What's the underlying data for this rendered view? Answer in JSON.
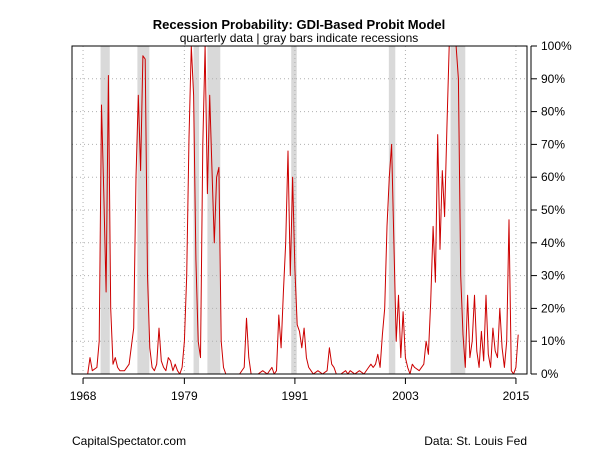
{
  "chart_data": {
    "type": "line",
    "title": "Recession Probability: GDI-Based Probit Model",
    "subtitle": "quarterly data | gray bars indicate recessions",
    "xlabel": "",
    "ylabel": "",
    "x_ticks": [
      "1968",
      "1979",
      "1991",
      "2003",
      "2015"
    ],
    "x_tick_values": [
      1968,
      1979,
      1991,
      2003,
      2015
    ],
    "y_ticks": [
      "0%",
      "10%",
      "20%",
      "30%",
      "40%",
      "50%",
      "60%",
      "70%",
      "80%",
      "90%",
      "100%"
    ],
    "y_tick_values": [
      0,
      10,
      20,
      30,
      40,
      50,
      60,
      70,
      80,
      90,
      100
    ],
    "xlim": [
      1966.8,
      2016.2
    ],
    "ylim": [
      0,
      100
    ],
    "grid": true,
    "line_color": "#cc0000",
    "recession_bar_color": "#d9d9d9",
    "recessions": [
      [
        1969.9,
        1970.9
      ],
      [
        1973.9,
        1975.2
      ],
      [
        1980.0,
        1980.6
      ],
      [
        1981.5,
        1982.9
      ],
      [
        1990.6,
        1991.2
      ],
      [
        2001.2,
        2001.9
      ],
      [
        2007.9,
        2009.5
      ]
    ],
    "series": [
      {
        "values": [
          [
            1967.75,
            0
          ],
          [
            1968.5,
            0
          ],
          [
            1968.75,
            5
          ],
          [
            1969.0,
            1
          ],
          [
            1969.5,
            2
          ],
          [
            1969.75,
            10
          ],
          [
            1970.0,
            82
          ],
          [
            1970.25,
            55
          ],
          [
            1970.5,
            25
          ],
          [
            1970.75,
            91
          ],
          [
            1971.0,
            20
          ],
          [
            1971.25,
            3
          ],
          [
            1971.5,
            5
          ],
          [
            1971.75,
            2
          ],
          [
            1972.0,
            1
          ],
          [
            1972.5,
            1
          ],
          [
            1973.0,
            3
          ],
          [
            1973.5,
            14
          ],
          [
            1973.75,
            60
          ],
          [
            1974.0,
            85
          ],
          [
            1974.25,
            62
          ],
          [
            1974.5,
            97
          ],
          [
            1974.75,
            96
          ],
          [
            1975.0,
            30
          ],
          [
            1975.25,
            8
          ],
          [
            1975.5,
            2
          ],
          [
            1975.75,
            1
          ],
          [
            1976.0,
            3
          ],
          [
            1976.25,
            14
          ],
          [
            1976.5,
            4
          ],
          [
            1976.75,
            2
          ],
          [
            1977.0,
            1
          ],
          [
            1977.25,
            5
          ],
          [
            1977.5,
            4
          ],
          [
            1977.75,
            1
          ],
          [
            1978.0,
            3
          ],
          [
            1978.25,
            1
          ],
          [
            1978.5,
            0
          ],
          [
            1978.75,
            2
          ],
          [
            1979.0,
            10
          ],
          [
            1979.25,
            30
          ],
          [
            1979.5,
            72
          ],
          [
            1979.75,
            100
          ],
          [
            1980.0,
            85
          ],
          [
            1980.25,
            35
          ],
          [
            1980.5,
            10
          ],
          [
            1980.75,
            5
          ],
          [
            1981.0,
            70
          ],
          [
            1981.25,
            100
          ],
          [
            1981.5,
            55
          ],
          [
            1981.75,
            85
          ],
          [
            1982.0,
            62
          ],
          [
            1982.25,
            40
          ],
          [
            1982.5,
            60
          ],
          [
            1982.75,
            63
          ],
          [
            1983.0,
            10
          ],
          [
            1983.25,
            2
          ],
          [
            1983.5,
            0
          ],
          [
            1984.0,
            0
          ],
          [
            1985.0,
            0
          ],
          [
            1985.5,
            2
          ],
          [
            1985.75,
            17
          ],
          [
            1986.0,
            5
          ],
          [
            1986.25,
            0
          ],
          [
            1987.0,
            0
          ],
          [
            1987.5,
            1
          ],
          [
            1988.0,
            0
          ],
          [
            1988.5,
            2
          ],
          [
            1988.75,
            0
          ],
          [
            1989.0,
            1
          ],
          [
            1989.25,
            18
          ],
          [
            1989.5,
            8
          ],
          [
            1989.75,
            25
          ],
          [
            1990.0,
            40
          ],
          [
            1990.25,
            68
          ],
          [
            1990.5,
            30
          ],
          [
            1990.75,
            60
          ],
          [
            1991.0,
            32
          ],
          [
            1991.25,
            15
          ],
          [
            1991.5,
            13
          ],
          [
            1991.75,
            8
          ],
          [
            1992.0,
            14
          ],
          [
            1992.25,
            5
          ],
          [
            1992.5,
            2
          ],
          [
            1992.75,
            1
          ],
          [
            1993.0,
            0
          ],
          [
            1993.5,
            1
          ],
          [
            1994.0,
            0
          ],
          [
            1994.5,
            1
          ],
          [
            1994.75,
            8
          ],
          [
            1995.0,
            3
          ],
          [
            1995.25,
            2
          ],
          [
            1995.5,
            0
          ],
          [
            1996.0,
            0
          ],
          [
            1996.5,
            1
          ],
          [
            1996.75,
            0
          ],
          [
            1997.0,
            1
          ],
          [
            1997.5,
            0
          ],
          [
            1998.0,
            1
          ],
          [
            1998.5,
            0
          ],
          [
            1999.0,
            2
          ],
          [
            1999.25,
            3
          ],
          [
            1999.5,
            2
          ],
          [
            1999.75,
            3
          ],
          [
            2000.0,
            6
          ],
          [
            2000.25,
            2
          ],
          [
            2000.5,
            12
          ],
          [
            2000.75,
            20
          ],
          [
            2001.0,
            45
          ],
          [
            2001.25,
            60
          ],
          [
            2001.5,
            70
          ],
          [
            2001.75,
            40
          ],
          [
            2002.0,
            10
          ],
          [
            2002.25,
            24
          ],
          [
            2002.5,
            5
          ],
          [
            2002.75,
            19
          ],
          [
            2003.0,
            5
          ],
          [
            2003.25,
            2
          ],
          [
            2003.5,
            0
          ],
          [
            2003.75,
            3
          ],
          [
            2004.0,
            2
          ],
          [
            2004.5,
            1
          ],
          [
            2005.0,
            3
          ],
          [
            2005.25,
            10
          ],
          [
            2005.5,
            6
          ],
          [
            2005.75,
            22
          ],
          [
            2006.0,
            45
          ],
          [
            2006.25,
            28
          ],
          [
            2006.5,
            73
          ],
          [
            2006.75,
            38
          ],
          [
            2007.0,
            62
          ],
          [
            2007.25,
            48
          ],
          [
            2007.5,
            75
          ],
          [
            2007.75,
            100
          ],
          [
            2008.0,
            100
          ],
          [
            2008.25,
            100
          ],
          [
            2008.5,
            100
          ],
          [
            2008.75,
            90
          ],
          [
            2009.0,
            30
          ],
          [
            2009.25,
            12
          ],
          [
            2009.5,
            2
          ],
          [
            2009.75,
            24
          ],
          [
            2010.0,
            5
          ],
          [
            2010.25,
            10
          ],
          [
            2010.5,
            24
          ],
          [
            2010.75,
            7
          ],
          [
            2011.0,
            2
          ],
          [
            2011.25,
            13
          ],
          [
            2011.5,
            4
          ],
          [
            2011.75,
            24
          ],
          [
            2012.0,
            6
          ],
          [
            2012.25,
            2
          ],
          [
            2012.5,
            14
          ],
          [
            2012.75,
            7
          ],
          [
            2013.0,
            5
          ],
          [
            2013.25,
            20
          ],
          [
            2013.5,
            8
          ],
          [
            2013.75,
            2
          ],
          [
            2014.0,
            10
          ],
          [
            2014.25,
            47
          ],
          [
            2014.5,
            1
          ],
          [
            2014.75,
            0
          ],
          [
            2015.0,
            2
          ],
          [
            2015.25,
            12
          ]
        ]
      }
    ]
  },
  "footer": {
    "left": "CapitalSpectator.com",
    "right": "Data: St. Louis Fed"
  }
}
